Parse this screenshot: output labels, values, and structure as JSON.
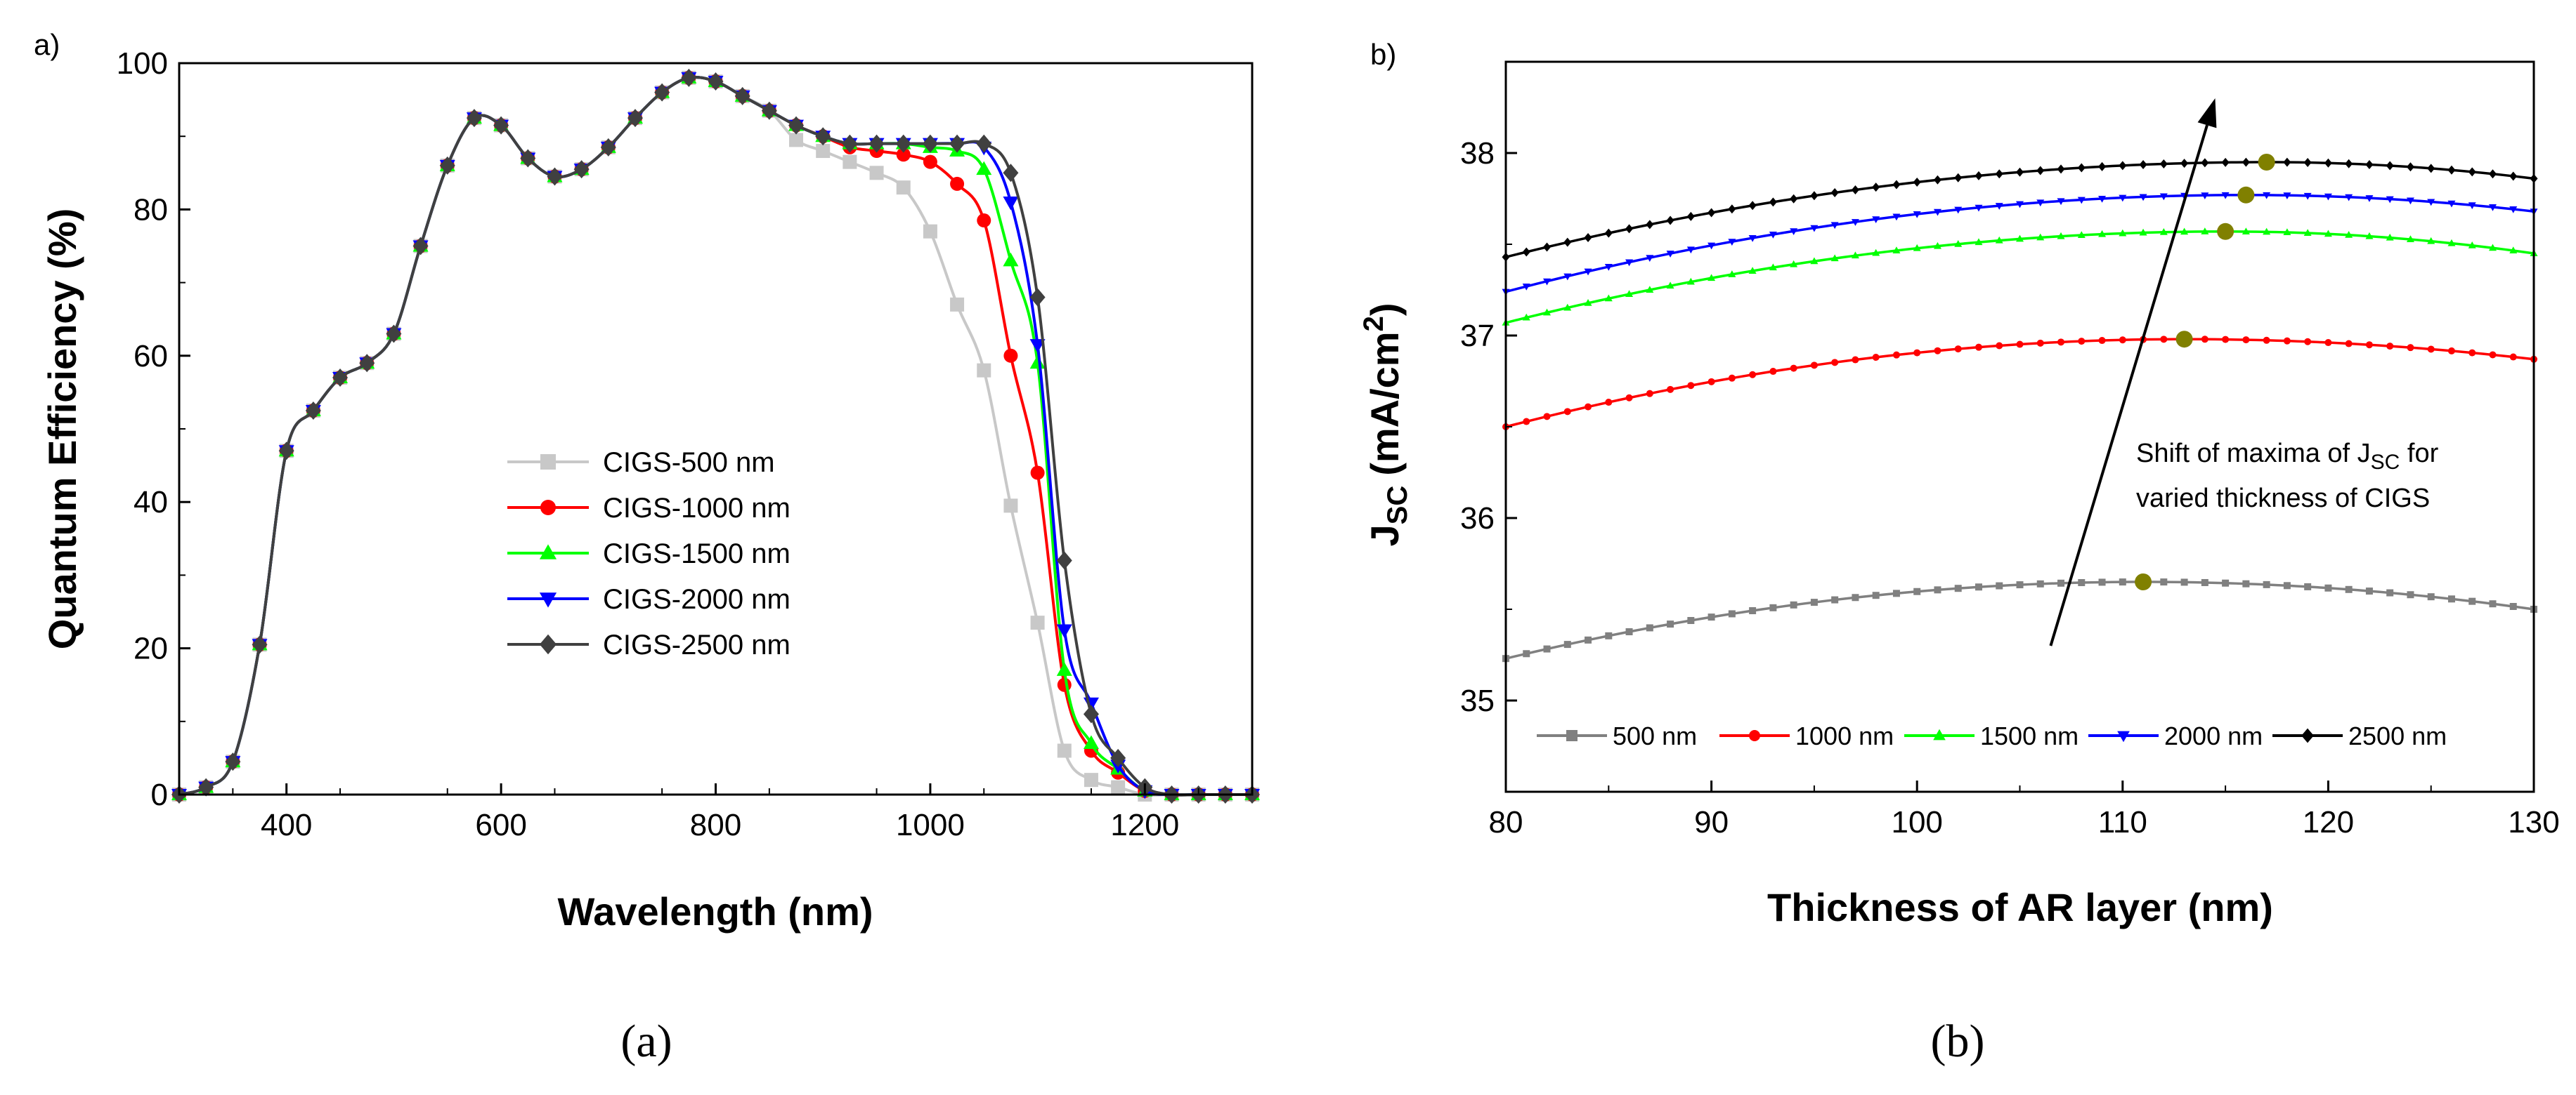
{
  "chart_data": [
    {
      "panel": "a)",
      "caption": "(a)",
      "type": "line",
      "title": "",
      "xlabel": "Wavelength (nm)",
      "ylabel": "Quantum Efficiency (%)",
      "xlim": [
        300,
        1300
      ],
      "ylim": [
        0,
        100
      ],
      "xticks": [
        400,
        600,
        800,
        1000,
        1200
      ],
      "yticks": [
        0,
        20,
        40,
        60,
        80,
        100
      ],
      "legend_position": "center",
      "x": [
        300,
        325,
        350,
        375,
        400,
        425,
        450,
        475,
        500,
        525,
        550,
        575,
        600,
        625,
        650,
        675,
        700,
        725,
        750,
        775,
        800,
        825,
        850,
        875,
        900,
        925,
        950,
        975,
        1000,
        1025,
        1050,
        1075,
        1100,
        1125,
        1150,
        1175,
        1200,
        1225,
        1250,
        1275,
        1300
      ],
      "base": [
        0,
        1,
        4.5,
        20.5,
        47,
        52.5,
        57,
        59,
        63,
        75,
        86,
        92.5,
        91.5,
        87,
        84.5,
        85.5,
        88.5,
        92.5,
        96,
        98,
        97.5,
        95.5,
        93.5,
        91.5,
        90,
        89,
        89,
        89,
        89,
        89,
        89,
        85,
        68,
        32,
        11,
        5,
        1,
        0,
        0,
        0,
        0
      ],
      "series": [
        {
          "name": "CIGS-500 nm",
          "color": "#c8c8c8",
          "marker": "square",
          "override": {
            "875": 89.5,
            "900": 88,
            "925": 86.5,
            "950": 85,
            "975": 83,
            "1000": 77,
            "1025": 67,
            "1050": 58,
            "1075": 39.5,
            "1100": 23.5,
            "1125": 6,
            "1150": 2,
            "1175": 1,
            "1200": 0
          }
        },
        {
          "name": "CIGS-1000 nm",
          "color": "#ff0000",
          "marker": "circle",
          "override": {
            "925": 88.5,
            "950": 88,
            "975": 87.5,
            "1000": 86.5,
            "1025": 83.5,
            "1050": 78.5,
            "1075": 60,
            "1100": 44,
            "1125": 15,
            "1150": 6,
            "1175": 3,
            "1200": 0.5
          }
        },
        {
          "name": "CIGS-1500 nm",
          "color": "#00ff00",
          "marker": "triangle-up",
          "override": {
            "1000": 88.5,
            "1025": 88,
            "1050": 85.5,
            "1075": 73,
            "1100": 59,
            "1125": 17,
            "1150": 7,
            "1175": 3.5,
            "1200": 0.5
          }
        },
        {
          "name": "CIGS-2000 nm",
          "color": "#0000ff",
          "marker": "triangle-down",
          "override": {
            "1050": 88.5,
            "1075": 81,
            "1100": 61.5,
            "1125": 22.5,
            "1150": 12.5,
            "1175": 4,
            "1200": 0.5
          }
        },
        {
          "name": "CIGS-2500 nm",
          "color": "#404040",
          "marker": "diamond",
          "override": {}
        }
      ]
    },
    {
      "panel": "b)",
      "caption": "(b)",
      "type": "line",
      "title": "",
      "xlabel": "Thickness of AR layer (nm)",
      "ylabel_main": "J",
      "ylabel_sub": "SC",
      "ylabel_unit": "(mA/cm",
      "ylabel_sup": "2",
      "ylabel_close": ")",
      "xlim": [
        80,
        130
      ],
      "ylim": [
        34.5,
        38.5
      ],
      "xticks": [
        80,
        90,
        100,
        110,
        120,
        130
      ],
      "yticks": [
        35,
        36,
        37,
        38
      ],
      "legend_position": "bottom",
      "series": [
        {
          "name": "500 nm",
          "color": "#808080",
          "marker": "square",
          "peak_x": 111,
          "peak_y": 35.65,
          "start_y": 35.23,
          "end_y": 35.5
        },
        {
          "name": "1000 nm",
          "color": "#ff0000",
          "marker": "circle",
          "peak_x": 113,
          "peak_y": 36.98,
          "start_y": 36.5,
          "end_y": 36.87
        },
        {
          "name": "1500 nm",
          "color": "#00ff00",
          "marker": "triangle-up",
          "peak_x": 115,
          "peak_y": 37.57,
          "start_y": 37.07,
          "end_y": 37.45
        },
        {
          "name": "2000 nm",
          "color": "#0000ff",
          "marker": "triangle-down",
          "peak_x": 116,
          "peak_y": 37.77,
          "start_y": 37.24,
          "end_y": 37.68
        },
        {
          "name": "2500 nm",
          "color": "#000000",
          "marker": "diamond",
          "peak_x": 117,
          "peak_y": 37.95,
          "start_y": 37.43,
          "end_y": 37.86
        }
      ],
      "peak_marker_color": "#808000",
      "annotation": {
        "line1_pre": "Shift of maxima of J",
        "line1_sub": "SC",
        "line1_post": " for",
        "line2": "varied thickness of CIGS",
        "arrow_from": [
          106.5,
          35.3
        ],
        "arrow_to": [
          114.5,
          38.3
        ]
      }
    }
  ]
}
